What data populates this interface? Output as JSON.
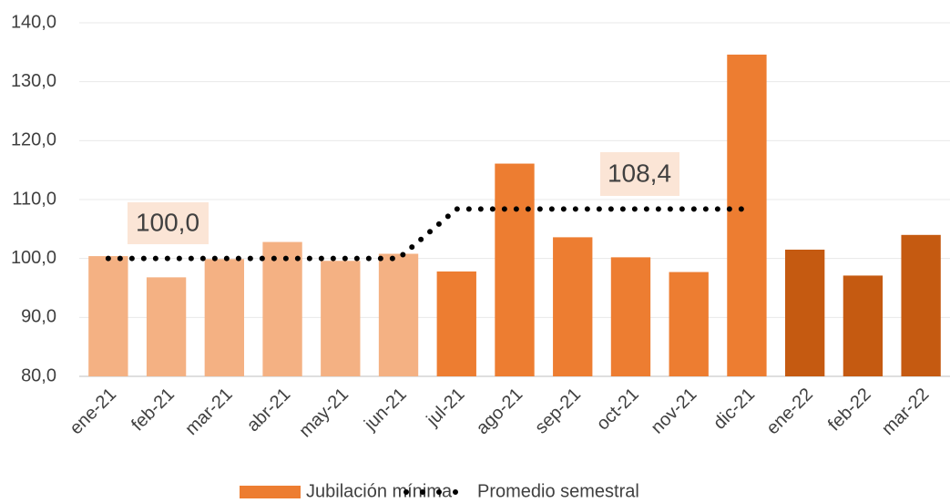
{
  "chart_data": {
    "type": "bar",
    "categories": [
      "ene-21",
      "feb-21",
      "mar-21",
      "abr-21",
      "may-21",
      "jun-21",
      "jul-21",
      "ago-21",
      "sep-21",
      "oct-21",
      "nov-21",
      "dic-21",
      "ene-22",
      "feb-22",
      "mar-22"
    ],
    "series": [
      {
        "name": "Jubilación mínima",
        "color": "#ed7d31",
        "colors": [
          "#f4b183",
          "#f4b183",
          "#f4b183",
          "#f4b183",
          "#f4b183",
          "#f4b183",
          "#ed7d31",
          "#ed7d31",
          "#ed7d31",
          "#ed7d31",
          "#ed7d31",
          "#ed7d31",
          "#c55a11",
          "#c55a11",
          "#c55a11"
        ],
        "values": [
          100.4,
          96.8,
          99.9,
          102.8,
          99.6,
          100.8,
          97.8,
          116.1,
          103.6,
          100.2,
          97.7,
          134.6,
          101.5,
          97.1,
          104.0
        ]
      },
      {
        "name": "Promedio semestral",
        "type": "line",
        "style": "dotted",
        "color": "#000000",
        "values": [
          100.0,
          100.0,
          100.0,
          100.0,
          100.0,
          100.0,
          108.4,
          108.4,
          108.4,
          108.4,
          108.4,
          108.4,
          null,
          null,
          null
        ]
      }
    ],
    "annotations": [
      "100,0",
      "108,4"
    ],
    "ylim": [
      80,
      140
    ],
    "yticks": [
      {
        "value": 80,
        "label": "80,0"
      },
      {
        "value": 90,
        "label": "90,0"
      },
      {
        "value": 100,
        "label": "100,0"
      },
      {
        "value": 110,
        "label": "110,0"
      },
      {
        "value": 120,
        "label": "120,0"
      },
      {
        "value": 130,
        "label": "130,0"
      },
      {
        "value": 140,
        "label": "140,0"
      }
    ],
    "grid": true,
    "legend": "bottom"
  }
}
